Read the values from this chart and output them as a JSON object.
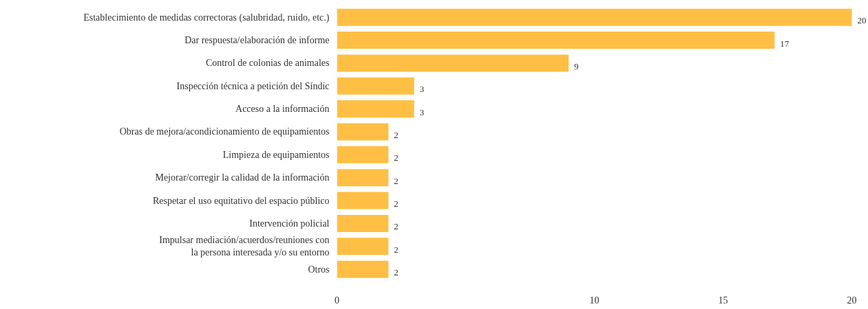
{
  "chart_data": {
    "type": "bar",
    "orientation": "horizontal",
    "categories": [
      "Establecimiento de medidas correctoras (salubridad, ruido, etc.)",
      "Dar respuesta/elaboración de informe",
      "Control de colonias de animales",
      "Inspección técnica a petición del Síndic",
      "Acceso a la información",
      "Obras de mejora/acondicionamiento de equipamientos",
      "Limpieza de equipamientos",
      "Mejorar/corregir la calidad de la información",
      "Respetar el uso equitativo del espacio público",
      "Intervención policial",
      "Impulsar mediación/acuerdos/reuniones con\nla persona interesada y/o su entorno",
      "Otros"
    ],
    "values": [
      20,
      17,
      9,
      3,
      3,
      2,
      2,
      2,
      2,
      2,
      2,
      2
    ],
    "color": "#ffbf44",
    "xlim": [
      0,
      20
    ],
    "xticks": [
      0,
      10,
      15,
      20
    ],
    "data_labels": true,
    "grid": false
  }
}
